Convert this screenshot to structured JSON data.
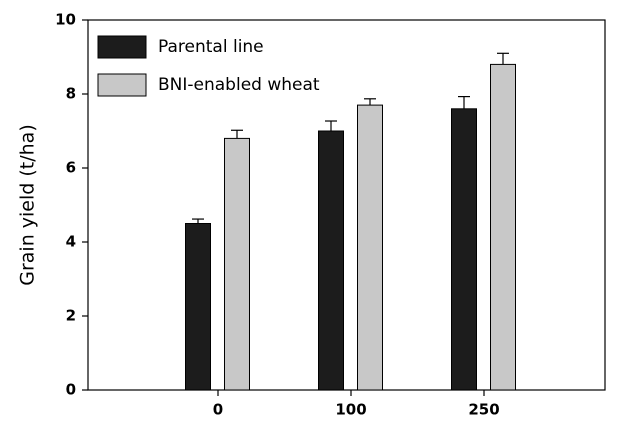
{
  "chart_data": {
    "type": "bar",
    "ylabel": "Grain yield (t/ha)",
    "categories": [
      "0",
      "100",
      "250"
    ],
    "series": [
      {
        "name": "Parental line",
        "color": "#1c1c1c",
        "values": [
          4.5,
          7.0,
          7.6
        ],
        "errors": [
          0.12,
          0.27,
          0.33
        ]
      },
      {
        "name": "BNI-enabled wheat",
        "color": "#c8c8c8",
        "values": [
          6.8,
          7.7,
          8.8
        ],
        "errors": [
          0.22,
          0.17,
          0.3
        ]
      }
    ],
    "ylim": [
      0,
      10
    ],
    "yticks": [
      0,
      2,
      4,
      6,
      8,
      10
    ],
    "grid": false,
    "legend": "upper left"
  }
}
